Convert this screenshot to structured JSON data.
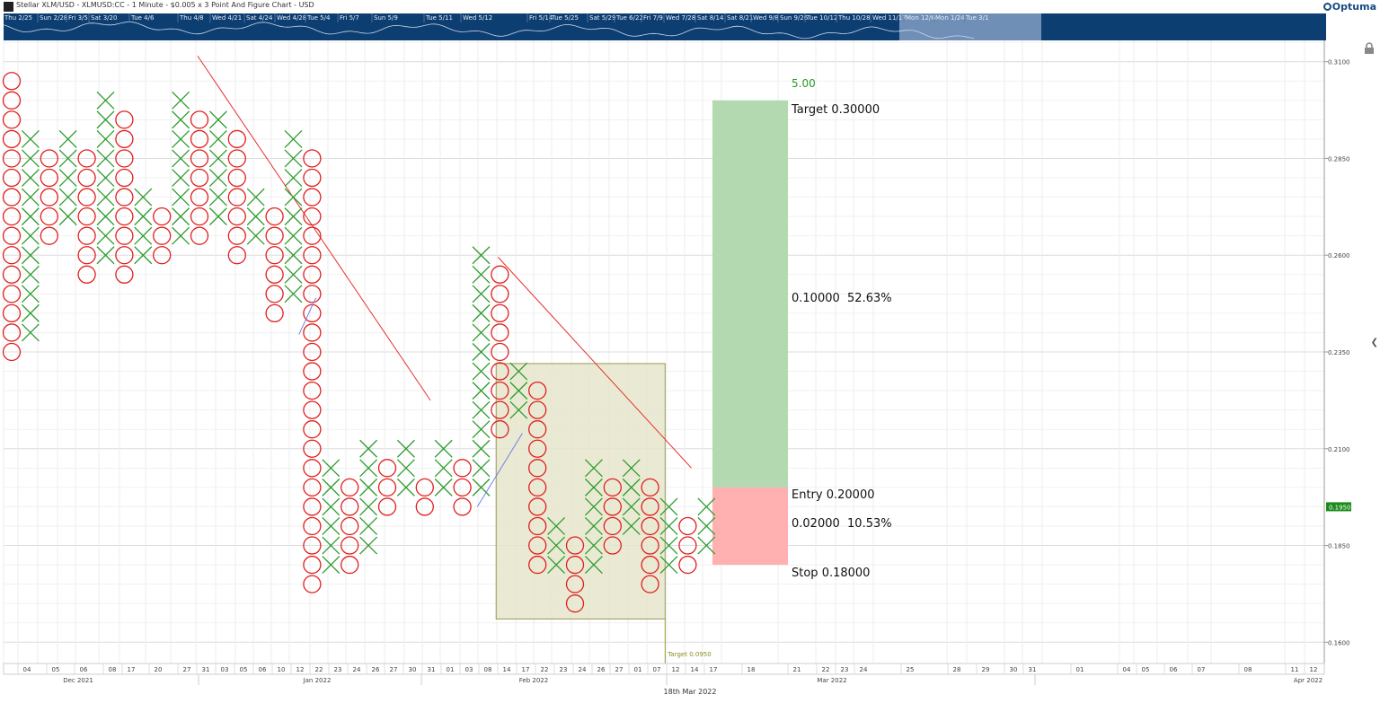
{
  "header": {
    "title": "Stellar XLM/USD - XLMUSD:CC - 1 Minute - $0.005 x 3 Point And Figure Chart - USD",
    "logo": "Optuma"
  },
  "navigator_labels": [
    "Thu 2/25",
    "Sun 2/28",
    "Fri 3/5",
    "Sat 3/20",
    "Tue 4/6",
    "Thu 4/8",
    "Wed 4/21",
    "Sat 4/24",
    "Wed 4/28",
    "Tue 5/4",
    "Fri 5/7",
    "Sun 5/9",
    "Tue 5/11",
    "Wed 5/12",
    "Fri 5/14",
    "Tue 5/25",
    "Sat 5/29",
    "Tue 6/22",
    "Fri 7/9",
    "Wed 7/28",
    "Sat 8/14",
    "Sat 8/21",
    "Wed 9/8",
    "Sun 9/26",
    "Tue 10/12",
    "Thu 10/28",
    "Wed 11/17",
    "Mon 12/6",
    "Mon 1/24",
    "Tue 3/1"
  ],
  "footer_date": "18th Mar 2022",
  "colors": {
    "x": "#2e9c2e",
    "o": "#e02020",
    "trend": "#e83030",
    "target_zone": "#b3d9b0",
    "stop_zone": "#ffb0b0",
    "box": "#e6e6cd",
    "price_badge": "#1a8a1a",
    "nav": "#0d3e72"
  },
  "icons": [
    "lock-icon",
    "collapse-arrow-icon"
  ],
  "chart_data": {
    "type": "point-and-figure",
    "box_size": 0.005,
    "reversal": 3,
    "ylim": [
      0.1545,
      0.3155
    ],
    "y_ticks": [
      "0.3100",
      "0.2850",
      "0.2600",
      "0.2350",
      "0.2100",
      "0.1850",
      "0.1600"
    ],
    "last_price": "0.1950",
    "columns": [
      {
        "t": "O",
        "top": 0.305,
        "bot": 0.235
      },
      {
        "t": "X",
        "top": 0.29,
        "bot": 0.24
      },
      {
        "t": "O",
        "top": 0.285,
        "bot": 0.265
      },
      {
        "t": "X",
        "top": 0.29,
        "bot": 0.27
      },
      {
        "t": "O",
        "top": 0.285,
        "bot": 0.255
      },
      {
        "t": "X",
        "top": 0.3,
        "bot": 0.26
      },
      {
        "t": "O",
        "top": 0.295,
        "bot": 0.255
      },
      {
        "t": "X",
        "top": 0.275,
        "bot": 0.26
      },
      {
        "t": "O",
        "top": 0.27,
        "bot": 0.26
      },
      {
        "t": "X",
        "top": 0.3,
        "bot": 0.265
      },
      {
        "t": "O",
        "top": 0.295,
        "bot": 0.265
      },
      {
        "t": "X",
        "top": 0.295,
        "bot": 0.27
      },
      {
        "t": "O",
        "top": 0.29,
        "bot": 0.26
      },
      {
        "t": "X",
        "top": 0.275,
        "bot": 0.265
      },
      {
        "t": "O",
        "top": 0.27,
        "bot": 0.245
      },
      {
        "t": "X",
        "top": 0.29,
        "bot": 0.25
      },
      {
        "t": "O",
        "top": 0.285,
        "bot": 0.175
      },
      {
        "t": "X",
        "top": 0.205,
        "bot": 0.18
      },
      {
        "t": "O",
        "top": 0.2,
        "bot": 0.18
      },
      {
        "t": "X",
        "top": 0.21,
        "bot": 0.185
      },
      {
        "t": "O",
        "top": 0.205,
        "bot": 0.195
      },
      {
        "t": "X",
        "top": 0.21,
        "bot": 0.2
      },
      {
        "t": "O",
        "top": 0.2,
        "bot": 0.195
      },
      {
        "t": "X",
        "top": 0.21,
        "bot": 0.2
      },
      {
        "t": "O",
        "top": 0.205,
        "bot": 0.195
      },
      {
        "t": "X",
        "top": 0.26,
        "bot": 0.2
      },
      {
        "t": "O",
        "top": 0.255,
        "bot": 0.215
      },
      {
        "t": "X",
        "top": 0.23,
        "bot": 0.22
      },
      {
        "t": "O",
        "top": 0.225,
        "bot": 0.18
      },
      {
        "t": "X",
        "top": 0.19,
        "bot": 0.18
      },
      {
        "t": "O",
        "top": 0.185,
        "bot": 0.17
      },
      {
        "t": "X",
        "top": 0.205,
        "bot": 0.18
      },
      {
        "t": "O",
        "top": 0.2,
        "bot": 0.185
      },
      {
        "t": "X",
        "top": 0.205,
        "bot": 0.19
      },
      {
        "t": "O",
        "top": 0.2,
        "bot": 0.175
      },
      {
        "t": "X",
        "top": 0.195,
        "bot": 0.18
      },
      {
        "t": "O",
        "top": 0.19,
        "bot": 0.18
      },
      {
        "t": "X",
        "top": 0.195,
        "bot": 0.185
      }
    ],
    "trendlines": [
      {
        "x": [
          9.9,
          22.3
        ],
        "y": [
          0.3115,
          0.2225
        ]
      },
      {
        "x": [
          25.9,
          36.2
        ],
        "y": [
          0.2595,
          0.205
        ]
      }
    ],
    "rectangle": {
      "x": [
        25.8,
        34.8
      ],
      "y": [
        0.232,
        0.166
      ]
    },
    "target_marker": {
      "label": "Target 0.0950"
    },
    "position_tool": {
      "entry": 0.2,
      "target": 0.3,
      "stop": 0.18,
      "ratio_label": "5.00",
      "target_label": "Target",
      "target_value": "0.30000",
      "entry_label": "Entry",
      "entry_value": "0.20000",
      "stop_label": "Stop",
      "stop_value": "0.18000",
      "reward_label": "0.10000  52.63%",
      "risk_label": "0.02000  10.53%"
    },
    "x_ticks": [
      "04",
      "05",
      "06",
      "08",
      "17",
      "20",
      "27",
      "31",
      "03",
      "05",
      "06",
      "10",
      "12",
      "22",
      "23",
      "24",
      "26",
      "27",
      "30",
      "31",
      "01",
      "03",
      "08",
      "14",
      "17",
      "22",
      "23",
      "24",
      "26",
      "27",
      "01",
      "07",
      "12",
      "14",
      "17",
      "18",
      "21",
      "22",
      "23",
      "24",
      "25",
      "28",
      "29",
      "30",
      "31",
      "01",
      "04",
      "05",
      "06",
      "07",
      "08",
      "11",
      "12"
    ],
    "months": [
      "Dec 2021",
      "Jan 2022",
      "Feb 2022",
      "Mar 2022",
      "Apr 2022"
    ]
  }
}
